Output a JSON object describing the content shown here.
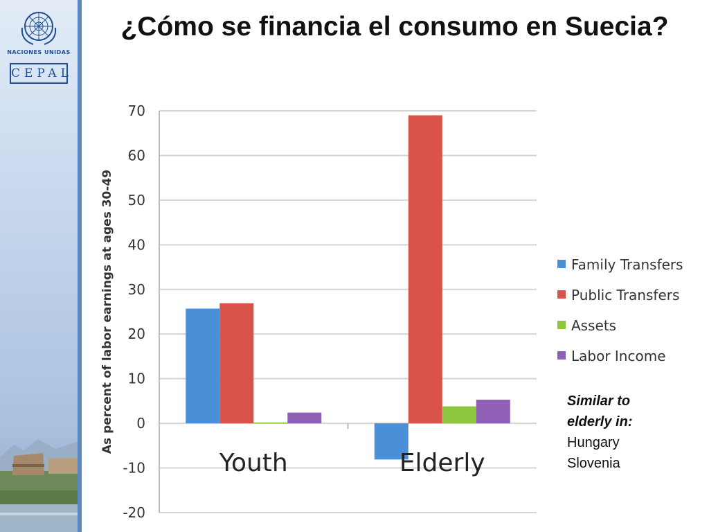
{
  "slide": {
    "title": "¿Cómo se financia el consumo en Suecia?"
  },
  "branding": {
    "org_name": "NACIONES UNIDAS",
    "org_logo": "CEPAL",
    "emblem_icon": "un-emblem-icon"
  },
  "chart_data": {
    "type": "bar",
    "title": "",
    "xlabel": "",
    "ylabel": "As percent of labor earnings at ages 30-49",
    "categories": [
      "Youth",
      "Elderly"
    ],
    "ylim": [
      -20,
      70
    ],
    "yticks": [
      -20,
      -10,
      0,
      10,
      20,
      30,
      40,
      50,
      60,
      70
    ],
    "grid": true,
    "legend_position": "right",
    "series": [
      {
        "name": "Family Transfers",
        "values": [
          25.7,
          -8.1
        ],
        "color": "#4a90d9"
      },
      {
        "name": "Public Transfers",
        "values": [
          26.9,
          69.0
        ],
        "color": "#d9534a"
      },
      {
        "name": "Assets",
        "values": [
          0.2,
          3.8
        ],
        "color": "#8dc63f"
      },
      {
        "name": "Labor Income",
        "values": [
          2.4,
          5.3
        ],
        "color": "#8e5fb5"
      }
    ]
  },
  "note": {
    "heading_line1": "Similar to",
    "heading_line2": "elderly in:",
    "countries": [
      "Hungary",
      "Slovenia"
    ]
  }
}
